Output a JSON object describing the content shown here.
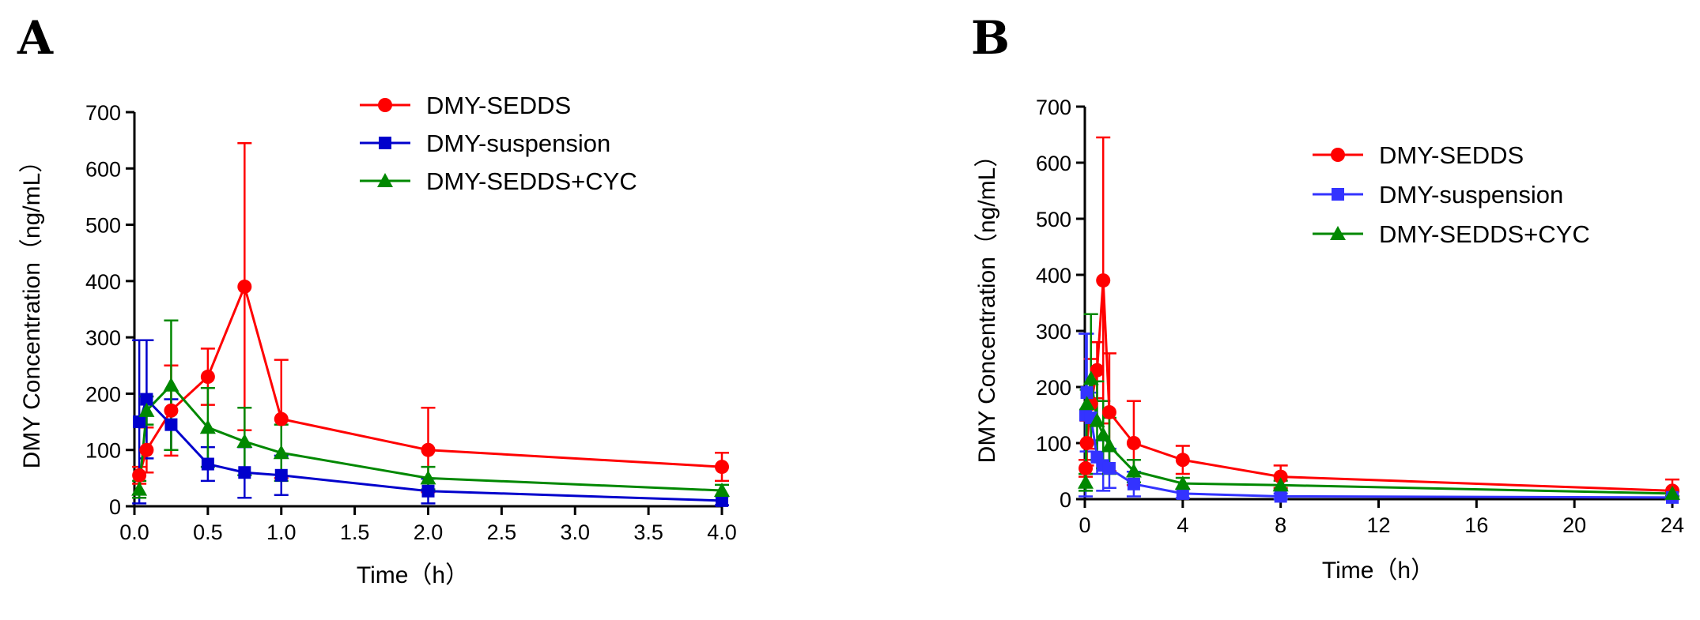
{
  "chart_data": [
    {
      "type": "line",
      "panel_label": "A",
      "xlabel": "Time（h）",
      "ylabel": "DMY Concentration（ng/mL）",
      "xlim": [
        0,
        4.0
      ],
      "ylim": [
        0,
        700
      ],
      "x_ticks": [
        "0.0",
        "0.5",
        "1.0",
        "1.5",
        "2.0",
        "2.5",
        "3.0",
        "3.5",
        "4.0"
      ],
      "y_ticks": [
        "0",
        "100",
        "200",
        "300",
        "400",
        "500",
        "600",
        "700"
      ],
      "legend_position": "top-right",
      "series": [
        {
          "name": "DMY-SEDDS",
          "color": "#ff0000",
          "marker": "circle",
          "x": [
            0.033,
            0.083,
            0.25,
            0.5,
            0.75,
            1.0,
            2.0,
            4.0
          ],
          "y": [
            55,
            100,
            170,
            230,
            390,
            155,
            100,
            70
          ],
          "error": [
            15,
            40,
            80,
            50,
            255,
            105,
            75,
            25
          ]
        },
        {
          "name": "DMY-suspension",
          "color": "#0000cc",
          "marker": "square",
          "x": [
            0.033,
            0.083,
            0.25,
            0.5,
            0.75,
            1.0,
            2.0,
            4.0
          ],
          "y": [
            150,
            190,
            145,
            75,
            60,
            55,
            27,
            10
          ],
          "error": [
            145,
            105,
            45,
            30,
            45,
            35,
            22,
            8
          ]
        },
        {
          "name": "DMY-SEDDS+CYC",
          "color": "#008800",
          "marker": "triangle",
          "x": [
            0.033,
            0.083,
            0.25,
            0.5,
            0.75,
            1.0,
            2.0,
            4.0
          ],
          "y": [
            30,
            170,
            215,
            140,
            115,
            95,
            50,
            28
          ],
          "error": [
            15,
            25,
            115,
            70,
            60,
            50,
            20,
            10
          ]
        }
      ]
    },
    {
      "type": "line",
      "panel_label": "B",
      "xlabel": "Time（h）",
      "ylabel": "DMY Concentration（ng/mL）",
      "xlim": [
        0,
        24
      ],
      "ylim": [
        0,
        700
      ],
      "x_ticks": [
        "0",
        "4",
        "8",
        "12",
        "16",
        "20",
        "24"
      ],
      "y_ticks": [
        "0",
        "100",
        "200",
        "300",
        "400",
        "500",
        "600",
        "700"
      ],
      "legend_position": "top-right",
      "series": [
        {
          "name": "DMY-SEDDS",
          "color": "#ff0000",
          "marker": "circle",
          "x": [
            0.033,
            0.083,
            0.25,
            0.5,
            0.75,
            1.0,
            2.0,
            4.0,
            8.0,
            24.0
          ],
          "y": [
            55,
            100,
            170,
            230,
            390,
            155,
            100,
            70,
            40,
            15
          ],
          "error": [
            15,
            40,
            80,
            50,
            255,
            105,
            75,
            25,
            20,
            20
          ]
        },
        {
          "name": "DMY-suspension",
          "color": "#3333ff",
          "marker": "square",
          "x": [
            0.033,
            0.083,
            0.25,
            0.5,
            0.75,
            1.0,
            2.0,
            4.0,
            8.0,
            24.0
          ],
          "y": [
            150,
            190,
            145,
            75,
            60,
            55,
            27,
            10,
            5,
            3
          ],
          "error": [
            145,
            105,
            45,
            30,
            45,
            35,
            22,
            8,
            5,
            3
          ]
        },
        {
          "name": "DMY-SEDDS+CYC",
          "color": "#008800",
          "marker": "triangle",
          "x": [
            0.033,
            0.083,
            0.25,
            0.5,
            0.75,
            1.0,
            2.0,
            4.0,
            8.0,
            24.0
          ],
          "y": [
            30,
            170,
            215,
            140,
            115,
            95,
            50,
            28,
            25,
            10
          ],
          "error": [
            15,
            25,
            115,
            70,
            60,
            50,
            20,
            10,
            8,
            5
          ]
        }
      ]
    }
  ]
}
